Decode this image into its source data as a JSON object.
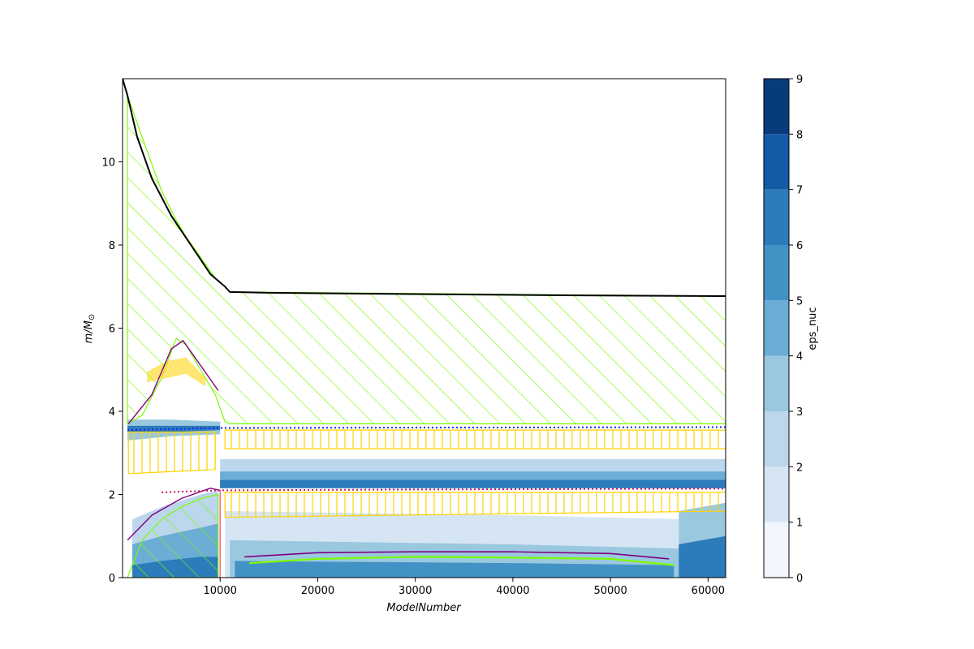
{
  "chart_data": {
    "type": "heatmap",
    "title": "",
    "xlabel": "ModelNumber",
    "ylabel": "m/M",
    "ylabel_subscript": "⊙",
    "xlim": [
      0,
      61800
    ],
    "ylim": [
      0,
      12
    ],
    "xticks": [
      10000,
      20000,
      30000,
      40000,
      50000,
      60000
    ],
    "xtick_labels": [
      "10000",
      "20000",
      "30000",
      "40000",
      "50000",
      "60000"
    ],
    "yticks": [
      0,
      2,
      4,
      6,
      8,
      10
    ],
    "ytick_labels": [
      "0",
      "2",
      "4",
      "6",
      "8",
      "10"
    ],
    "grid": false,
    "colorbar": {
      "label": "eps_nuc",
      "range": [
        0,
        9
      ],
      "ticks": [
        0,
        1,
        2,
        3,
        4,
        5,
        6,
        7,
        8,
        9
      ],
      "tick_labels": [
        "0",
        "1",
        "2",
        "3",
        "4",
        "5",
        "6",
        "7",
        "8",
        "9"
      ],
      "colors": [
        "#f1f6fc",
        "#d6e5f4",
        "#bcd6eb",
        "#9ac8df",
        "#6badd5",
        "#4292c6",
        "#2c7bba",
        "#145ba6",
        "#083b7b"
      ]
    },
    "total_mass": {
      "x": [
        0,
        500,
        1500,
        3000,
        5000,
        7000,
        9000,
        10500,
        11000,
        15000,
        30000,
        45000,
        61800
      ],
      "y": [
        12.0,
        11.6,
        10.6,
        9.6,
        8.7,
        8.0,
        7.3,
        7.0,
        6.87,
        6.85,
        6.82,
        6.79,
        6.77
      ]
    },
    "he_core_boundary": {
      "x": [
        500,
        10000,
        61800
      ],
      "y": [
        3.55,
        3.6,
        3.62
      ]
    },
    "co_core_boundary": {
      "x": [
        4000,
        10000,
        30000,
        61800
      ],
      "y": [
        2.05,
        2.1,
        2.12,
        2.14
      ]
    },
    "envelope_convection": {
      "x": [
        500,
        2000,
        4000,
        5500,
        6500,
        8000,
        9500,
        10500,
        11000,
        61800
      ],
      "lower_y": [
        3.7,
        3.9,
        4.8,
        5.75,
        5.6,
        5.0,
        4.4,
        3.75,
        3.7,
        3.7
      ],
      "upper_y": [
        11.6,
        10.6,
        9.3,
        8.6,
        8.2,
        7.7,
        7.2,
        7.0,
        6.87,
        6.77
      ]
    },
    "core_convection": {
      "x": [
        500,
        2000,
        4000,
        6000,
        8000,
        9800
      ],
      "upper_y": [
        0.0,
        0.9,
        1.4,
        1.7,
        1.9,
        2.0
      ]
    }
  }
}
